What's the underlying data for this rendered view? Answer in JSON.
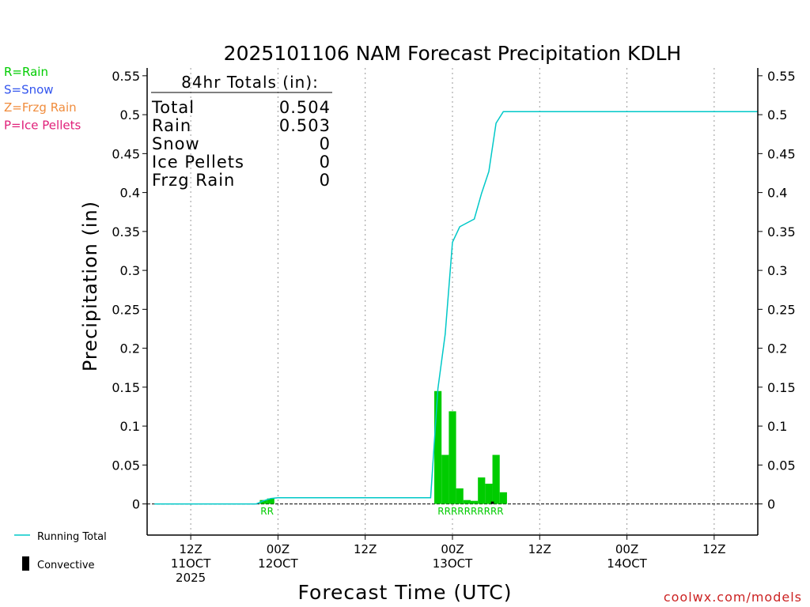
{
  "chart_data": {
    "type": "bar",
    "title": "2025101106 NAM Forecast Precipitation KDLH",
    "xlabel": "Forecast Time (UTC)",
    "ylabel": "Precipitation (in)",
    "ylim": [
      -0.04,
      0.56
    ],
    "y_ticks": [
      0,
      0.05,
      0.1,
      0.15,
      0.2,
      0.25,
      0.3,
      0.35,
      0.4,
      0.45,
      0.5,
      0.55
    ],
    "y_tick_labels": [
      "0",
      "0.05",
      "0.1",
      "0.15",
      "0.2",
      "0.25",
      "0.3",
      "0.35",
      "0.4",
      "0.45",
      "0.5",
      "0.55"
    ],
    "xlim": [
      0,
      84
    ],
    "x_ticks": [
      {
        "hour": 6,
        "line1": "12Z",
        "line2": "11OCT",
        "line3": "2025"
      },
      {
        "hour": 18,
        "line1": "00Z",
        "line2": "12OCT",
        "line3": ""
      },
      {
        "hour": 30,
        "line1": "12Z",
        "line2": "",
        "line3": ""
      },
      {
        "hour": 42,
        "line1": "00Z",
        "line2": "13OCT",
        "line3": ""
      },
      {
        "hour": 54,
        "line1": "12Z",
        "line2": "",
        "line3": ""
      },
      {
        "hour": 66,
        "line1": "00Z",
        "line2": "14OCT",
        "line3": ""
      },
      {
        "hour": 78,
        "line1": "12Z",
        "line2": "",
        "line3": ""
      }
    ],
    "grid": "vertical dotted",
    "series": [
      {
        "name": "Rain",
        "kind": "bar",
        "color": "#00cc00",
        "bar_width_hours": 1,
        "x_hours": [
          16,
          17,
          40,
          41,
          42,
          43,
          44,
          45,
          46,
          47,
          48,
          49
        ],
        "values": [
          0.005,
          0.007,
          0.145,
          0.063,
          0.119,
          0.02,
          0.005,
          0.004,
          0.034,
          0.026,
          0.063,
          0.015
        ]
      },
      {
        "name": "Convective",
        "kind": "bar",
        "color": "#000000",
        "bar_width_hours": 0.4,
        "x_hours": [
          47.5
        ],
        "values": [
          0.003
        ]
      },
      {
        "name": "Running Total",
        "kind": "line",
        "color": "#00c8c8",
        "x_hours": [
          1,
          15,
          16,
          17,
          18,
          39,
          40,
          41,
          42,
          43,
          44,
          45,
          46,
          47,
          48,
          49,
          84
        ],
        "values": [
          0,
          0,
          0.004,
          0.007,
          0.008,
          0.008,
          0.148,
          0.218,
          0.336,
          0.356,
          0.361,
          0.366,
          0.399,
          0.427,
          0.489,
          0.504,
          0.504
        ]
      }
    ],
    "ptype_markers": [
      {
        "hour": 16.5,
        "text": "RR"
      },
      {
        "hour": 44.5,
        "text": "RRRRRRRRRR"
      }
    ],
    "ptype_legend": [
      {
        "text": "R=Rain",
        "color": "#00cc00"
      },
      {
        "text": "S=Snow",
        "color": "#3355ee"
      },
      {
        "text": "Z=Frzg Rain",
        "color": "#f08c3c"
      },
      {
        "text": "P=Ice Pellets",
        "color": "#e0207a"
      }
    ],
    "totals_box": {
      "heading": "84hr Totals (in):",
      "rows": [
        {
          "label": "Total",
          "value": "0.504"
        },
        {
          "label": "Rain",
          "value": "0.503"
        },
        {
          "label": "Snow",
          "value": "0"
        },
        {
          "label": "Ice Pellets",
          "value": "0"
        },
        {
          "label": "Frzg Rain",
          "value": "0"
        }
      ]
    },
    "legend": [
      {
        "label": "Running Total",
        "symbol": "line",
        "color": "#00c8c8"
      },
      {
        "label": "Convective",
        "symbol": "bar",
        "color": "#000000"
      }
    ],
    "credit": "coolwx.com/models"
  }
}
